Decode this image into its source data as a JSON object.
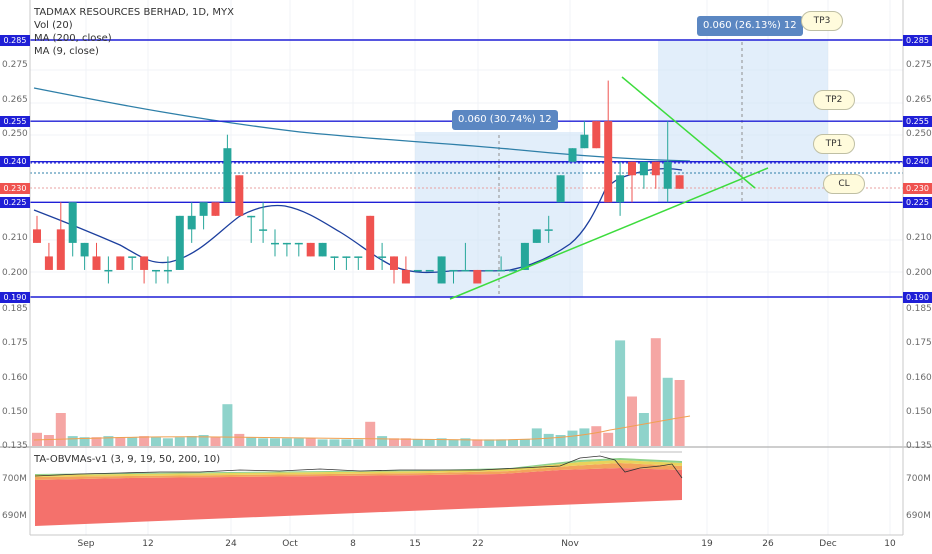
{
  "legend": {
    "title": "TADMAX RESOURCES BERHAD, 1D, MYX",
    "vol": "Vol (20)",
    "ma200": "MA (200, close)",
    "ma9": "MA (9, close)"
  },
  "oscillator": {
    "title": "TA-OBVMAs-v1 (3, 9, 19, 50, 200, 10)",
    "ticks": [
      "700M",
      "690M"
    ]
  },
  "price_ticks": [
    "0.285",
    "0.275",
    "0.265",
    "0.255",
    "0.250",
    "0.240",
    "0.230",
    "0.225",
    "0.210",
    "0.200",
    "0.190",
    "0.185",
    "0.175",
    "0.160",
    "0.150",
    "0.135"
  ],
  "price_lines": [
    {
      "label": "0.285",
      "price": 0.285
    },
    {
      "label": "0.255",
      "price": 0.255
    },
    {
      "label": "0.240",
      "price": 0.24
    },
    {
      "label": "0.225",
      "price": 0.225
    },
    {
      "label": "0.190",
      "price": 0.19
    }
  ],
  "last_price": "0.230",
  "measures": [
    {
      "label": "0.060 (30.74%) 12"
    },
    {
      "label": "0.060 (26.13%) 12"
    }
  ],
  "targets": [
    "TP3",
    "TP2",
    "TP1",
    "CL"
  ],
  "x_ticks": [
    "Sep",
    "12",
    "24",
    "Oct",
    "8",
    "15",
    "22",
    "Nov",
    "19",
    "26",
    "Dec",
    "10"
  ],
  "colors": {
    "up": "#26a69a",
    "down": "#ef5350",
    "hline": "#1f1fd6",
    "trend": "#3ddc3d",
    "ma200": "#2e7fa8",
    "ma9": "#1c3f9e"
  },
  "chart_data": {
    "type": "candlestick",
    "title": "TADMAX RESOURCES BERHAD, 1D, MYX",
    "x_labels": [
      "Sep",
      "12",
      "24",
      "Oct",
      "8",
      "15",
      "22",
      "Nov",
      "19",
      "26",
      "Dec",
      "10"
    ],
    "candles": [
      {
        "open": 0.215,
        "high": 0.22,
        "low": 0.21,
        "close": 0.21
      },
      {
        "open": 0.205,
        "high": 0.21,
        "low": 0.2,
        "close": 0.2
      },
      {
        "open": 0.215,
        "high": 0.225,
        "low": 0.2,
        "close": 0.2
      },
      {
        "open": 0.21,
        "high": 0.225,
        "low": 0.205,
        "close": 0.225
      },
      {
        "open": 0.205,
        "high": 0.21,
        "low": 0.2,
        "close": 0.21
      },
      {
        "open": 0.205,
        "high": 0.21,
        "low": 0.2,
        "close": 0.2
      },
      {
        "open": 0.2,
        "high": 0.205,
        "low": 0.195,
        "close": 0.2
      },
      {
        "open": 0.205,
        "high": 0.205,
        "low": 0.2,
        "close": 0.2
      },
      {
        "open": 0.205,
        "high": 0.205,
        "low": 0.2,
        "close": 0.205
      },
      {
        "open": 0.205,
        "high": 0.205,
        "low": 0.195,
        "close": 0.2
      },
      {
        "open": 0.2,
        "high": 0.2,
        "low": 0.195,
        "close": 0.2
      },
      {
        "open": 0.2,
        "high": 0.205,
        "low": 0.195,
        "close": 0.2
      },
      {
        "open": 0.2,
        "high": 0.22,
        "low": 0.2,
        "close": 0.22
      },
      {
        "open": 0.215,
        "high": 0.225,
        "low": 0.21,
        "close": 0.22
      },
      {
        "open": 0.22,
        "high": 0.225,
        "low": 0.215,
        "close": 0.225
      },
      {
        "open": 0.225,
        "high": 0.225,
        "low": 0.22,
        "close": 0.22
      },
      {
        "open": 0.225,
        "high": 0.25,
        "low": 0.225,
        "close": 0.245
      },
      {
        "open": 0.235,
        "high": 0.235,
        "low": 0.22,
        "close": 0.22
      },
      {
        "open": 0.22,
        "high": 0.22,
        "low": 0.21,
        "close": 0.22
      },
      {
        "open": 0.215,
        "high": 0.225,
        "low": 0.21,
        "close": 0.215
      },
      {
        "open": 0.21,
        "high": 0.215,
        "low": 0.205,
        "close": 0.21
      },
      {
        "open": 0.21,
        "high": 0.21,
        "low": 0.205,
        "close": 0.21
      },
      {
        "open": 0.21,
        "high": 0.21,
        "low": 0.205,
        "close": 0.21
      },
      {
        "open": 0.21,
        "high": 0.21,
        "low": 0.205,
        "close": 0.205
      },
      {
        "open": 0.205,
        "high": 0.21,
        "low": 0.205,
        "close": 0.21
      },
      {
        "open": 0.205,
        "high": 0.205,
        "low": 0.2,
        "close": 0.205
      },
      {
        "open": 0.205,
        "high": 0.205,
        "low": 0.2,
        "close": 0.205
      },
      {
        "open": 0.205,
        "high": 0.205,
        "low": 0.2,
        "close": 0.205
      },
      {
        "open": 0.22,
        "high": 0.22,
        "low": 0.2,
        "close": 0.2
      },
      {
        "open": 0.205,
        "high": 0.21,
        "low": 0.2,
        "close": 0.205
      },
      {
        "open": 0.205,
        "high": 0.205,
        "low": 0.195,
        "close": 0.2
      },
      {
        "open": 0.2,
        "high": 0.205,
        "low": 0.195,
        "close": 0.195
      },
      {
        "open": 0.2,
        "high": 0.2,
        "low": 0.2,
        "close": 0.2
      },
      {
        "open": 0.2,
        "high": 0.2,
        "low": 0.2,
        "close": 0.2
      },
      {
        "open": 0.195,
        "high": 0.205,
        "low": 0.195,
        "close": 0.205
      },
      {
        "open": 0.2,
        "high": 0.2,
        "low": 0.195,
        "close": 0.2
      },
      {
        "open": 0.2,
        "high": 0.21,
        "low": 0.2,
        "close": 0.2
      },
      {
        "open": 0.2,
        "high": 0.2,
        "low": 0.195,
        "close": 0.195
      },
      {
        "open": 0.2,
        "high": 0.2,
        "low": 0.2,
        "close": 0.2
      },
      {
        "open": 0.2,
        "high": 0.205,
        "low": 0.2,
        "close": 0.2
      },
      {
        "open": 0.2,
        "high": 0.2,
        "low": 0.2,
        "close": 0.2
      },
      {
        "open": 0.2,
        "high": 0.21,
        "low": 0.2,
        "close": 0.21
      },
      {
        "open": 0.21,
        "high": 0.215,
        "low": 0.21,
        "close": 0.215
      },
      {
        "open": 0.215,
        "high": 0.22,
        "low": 0.21,
        "close": 0.215
      },
      {
        "open": 0.225,
        "high": 0.235,
        "low": 0.225,
        "close": 0.235
      },
      {
        "open": 0.24,
        "high": 0.245,
        "low": 0.24,
        "close": 0.245
      },
      {
        "open": 0.245,
        "high": 0.255,
        "low": 0.245,
        "close": 0.25
      },
      {
        "open": 0.255,
        "high": 0.255,
        "low": 0.245,
        "close": 0.245
      },
      {
        "open": 0.255,
        "high": 0.27,
        "low": 0.225,
        "close": 0.225
      },
      {
        "open": 0.225,
        "high": 0.24,
        "low": 0.22,
        "close": 0.235
      },
      {
        "open": 0.24,
        "high": 0.24,
        "low": 0.225,
        "close": 0.235
      },
      {
        "open": 0.235,
        "high": 0.24,
        "low": 0.23,
        "close": 0.24
      },
      {
        "open": 0.24,
        "high": 0.24,
        "low": 0.23,
        "close": 0.235
      },
      {
        "open": 0.23,
        "high": 0.255,
        "low": 0.225,
        "close": 0.24
      },
      {
        "open": 0.235,
        "high": 0.235,
        "low": 0.23,
        "close": 0.23
      }
    ],
    "volume": [
      12,
      10,
      30,
      9,
      8,
      8,
      9,
      8,
      8,
      9,
      8,
      7,
      8,
      9,
      10,
      8,
      38,
      11,
      8,
      7,
      7,
      7,
      7,
      7,
      6,
      6,
      6,
      6,
      22,
      9,
      7,
      7,
      6,
      6,
      7,
      6,
      7,
      6,
      6,
      6,
      6,
      6,
      16,
      11,
      10,
      14,
      16,
      18,
      12,
      96,
      45,
      30,
      98,
      62,
      60
    ],
    "horizontal_levels": [
      0.285,
      0.255,
      0.24,
      0.225,
      0.19
    ],
    "ylim": [
      0.185,
      0.29
    ]
  }
}
